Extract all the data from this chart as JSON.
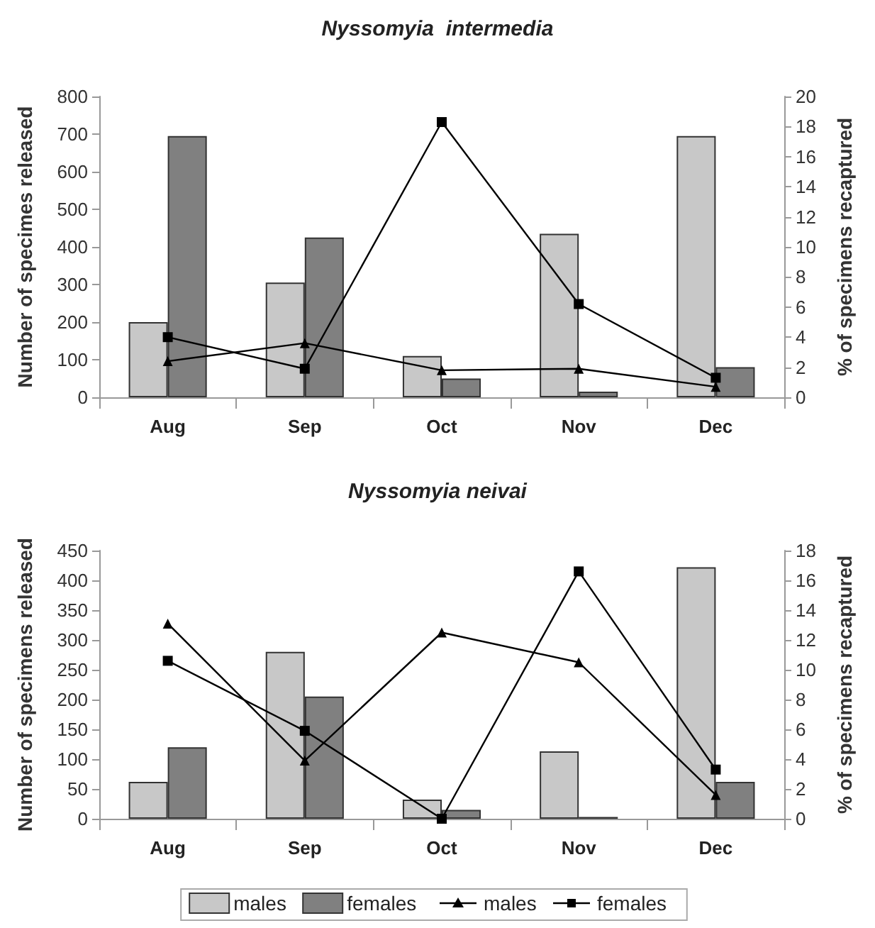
{
  "chart_data": [
    {
      "type": "bar",
      "title": "Nyssomyia  intermedia",
      "ylabel": "Number of specimes released",
      "y2label": "% of specimens recaptured",
      "categories": [
        "Aug",
        "Sep",
        "Oct",
        "Nov",
        "Dec"
      ],
      "series": [
        {
          "color": "#c8c8c8",
          "values": [
            200,
            305,
            110,
            435,
            695
          ]
        },
        {
          "color": "#808080",
          "values": [
            695,
            425,
            50,
            15,
            80
          ]
        },
        {
          "type": "line",
          "axis": "y2",
          "marker": "triangle",
          "color": "#000000",
          "values": [
            2.4,
            3.6,
            1.8,
            1.9,
            0.7
          ]
        },
        {
          "type": "line",
          "axis": "y2",
          "marker": "square",
          "color": "#000000",
          "values": [
            4.0,
            1.9,
            18.3,
            6.2,
            1.3
          ]
        }
      ],
      "ylim": [
        0,
        800
      ],
      "yticks": [
        0,
        100,
        200,
        300,
        400,
        500,
        600,
        700,
        800
      ],
      "y2lim": [
        0,
        20
      ],
      "y2ticks": [
        0,
        2,
        4,
        6,
        8,
        10,
        12,
        14,
        16,
        18,
        20
      ],
      "grid": false,
      "legend": false
    },
    {
      "type": "bar",
      "title": "Nyssomyia neivai",
      "ylabel": "Number of specimens released",
      "y2label": "% of specimens recaptured",
      "categories": [
        "Aug",
        "Sep",
        "Oct",
        "Nov",
        "Dec"
      ],
      "series": [
        {
          "name": "males",
          "color": "#c8c8c8",
          "values": [
            62,
            280,
            32,
            113,
            422
          ]
        },
        {
          "name": "females",
          "color": "#808080",
          "values": [
            120,
            205,
            15,
            3,
            62
          ]
        },
        {
          "type": "line",
          "name": "males",
          "axis": "y2",
          "marker": "triangle",
          "color": "#000000",
          "values": [
            13.1,
            3.9,
            12.5,
            10.5,
            1.6
          ]
        },
        {
          "type": "line",
          "name": "females",
          "axis": "y2",
          "marker": "square",
          "color": "#000000",
          "values": [
            10.6,
            5.9,
            0,
            16.6,
            3.3
          ]
        }
      ],
      "ylim": [
        0,
        450
      ],
      "yticks": [
        0,
        50,
        100,
        150,
        200,
        250,
        300,
        350,
        400,
        450
      ],
      "y2lim": [
        0,
        18
      ],
      "y2ticks": [
        0,
        2,
        4,
        6,
        8,
        10,
        12,
        14,
        16,
        18
      ],
      "grid": false,
      "legend": "bottom"
    }
  ]
}
